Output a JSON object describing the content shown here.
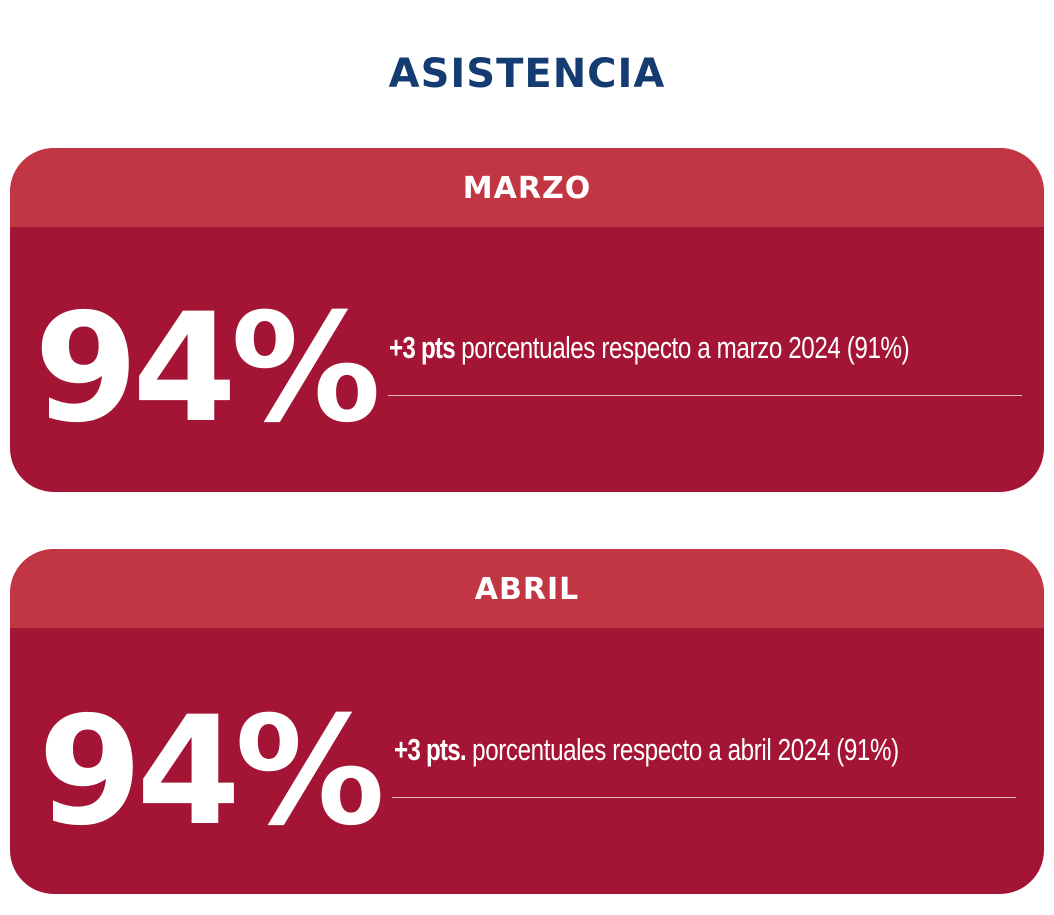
{
  "title": "ASISTENCIA",
  "colors": {
    "title": "#143c72",
    "header": "#c23644",
    "card": "#a31435",
    "text": "#ffffff"
  },
  "cards": [
    {
      "month": "MARZO",
      "value": "94%",
      "delta": "+3 pts",
      "description": " porcentuales respecto a marzo 2024 (91%)"
    },
    {
      "month": "ABRIL",
      "value": "94%",
      "delta": "+3 pts.",
      "description": " porcentuales respecto a abril 2024 (91%)"
    }
  ]
}
